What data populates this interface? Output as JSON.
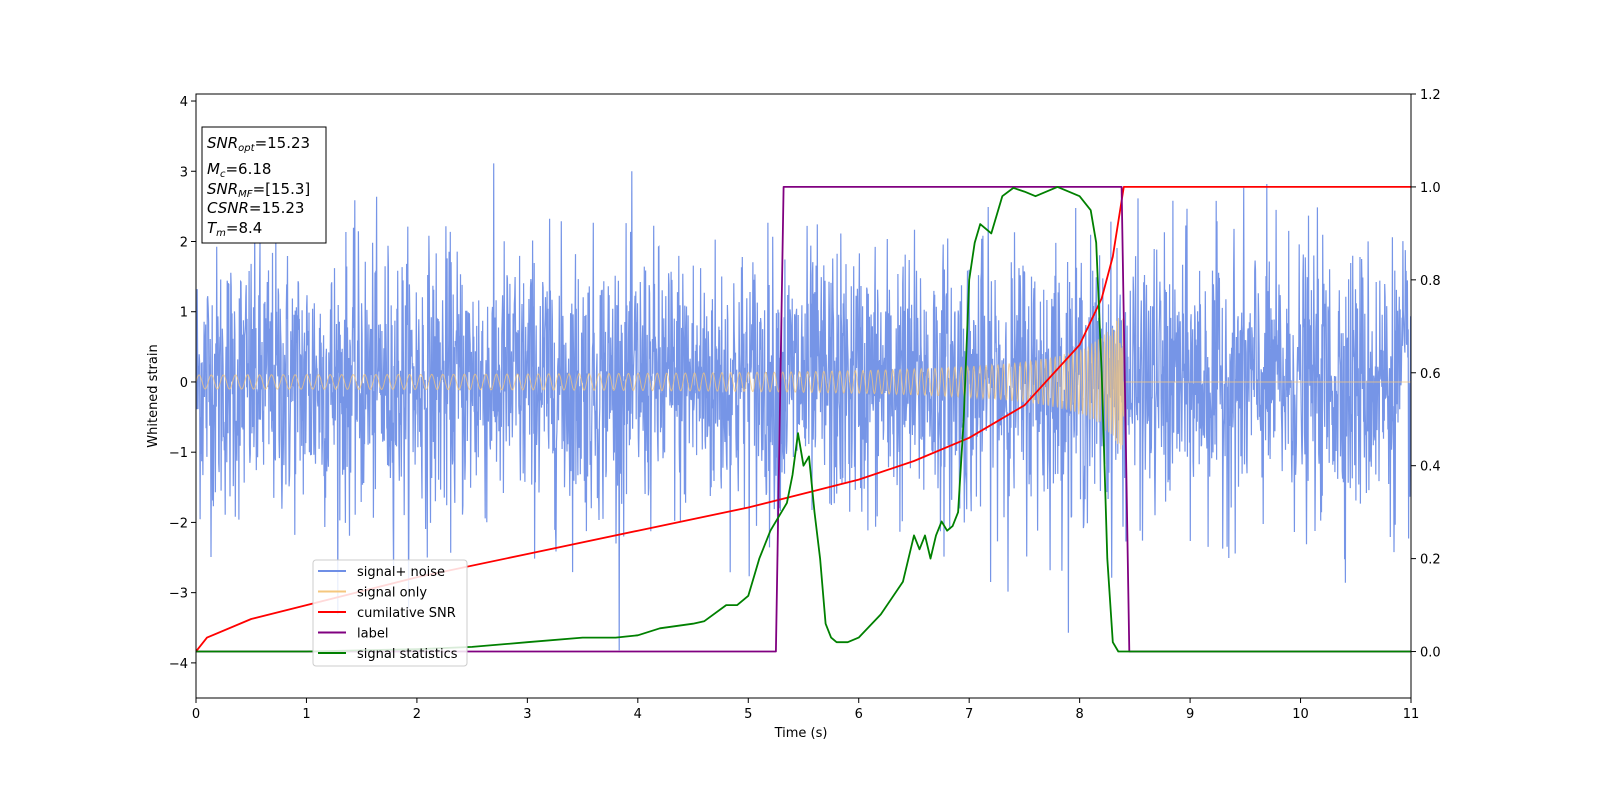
{
  "chart_data": {
    "type": "line",
    "xlabel": "Time (s)",
    "ylabel": "Whitened strain",
    "xlim": [
      0,
      11
    ],
    "ylim": [
      -4.5,
      4.1
    ],
    "y2lim": [
      -0.1,
      1.2
    ],
    "xticks": [
      0,
      1,
      2,
      3,
      4,
      5,
      6,
      7,
      8,
      9,
      10,
      11
    ],
    "yticks": [
      -4,
      -3,
      -2,
      -1,
      0,
      1,
      2,
      3,
      4
    ],
    "y2ticks": [
      0.0,
      0.2,
      0.4,
      0.6,
      0.8,
      1.0,
      1.2
    ],
    "grid": false,
    "legend_position": "lower-left",
    "info_box": {
      "snr_opt": "=15.23",
      "mc": "=6.18",
      "snr_mf": "=[15.3]",
      "csnr": "=15.23",
      "tm": "=8.4"
    },
    "series": [
      {
        "name": "signal+ noise",
        "color": "#6f8fe6",
        "axis": "left",
        "description_values": {
          "mean": 0.0,
          "std": 0.95,
          "range": [
            -4.1,
            3.7
          ]
        }
      },
      {
        "name": "signal only",
        "color": "#f5c77e",
        "axis": "left",
        "chirp": {
          "t_start": 0,
          "t_merger": 8.4,
          "amp_start": 0.08,
          "amp_peak": 1.05
        }
      },
      {
        "name": "cumilative SNR",
        "color": "#ff0000",
        "axis": "right",
        "x": [
          0,
          0.1,
          0.5,
          1,
          2,
          3,
          4,
          5,
          5.5,
          6,
          6.5,
          7,
          7.5,
          8,
          8.2,
          8.3,
          8.4,
          11
        ],
        "y": [
          0.0,
          0.03,
          0.07,
          0.1,
          0.16,
          0.21,
          0.26,
          0.31,
          0.34,
          0.37,
          0.41,
          0.46,
          0.53,
          0.66,
          0.76,
          0.85,
          1.0,
          1.0
        ]
      },
      {
        "name": "label",
        "color": "#800080",
        "axis": "right",
        "x": [
          0,
          5.25,
          5.32,
          8.38,
          8.45,
          11
        ],
        "y": [
          0,
          0,
          1,
          1,
          0,
          0
        ]
      },
      {
        "name": "signal statistics",
        "color": "#008000",
        "axis": "right",
        "x": [
          0,
          1,
          2,
          2.5,
          3,
          3.5,
          3.8,
          4,
          4.2,
          4.5,
          4.6,
          4.8,
          4.9,
          5.0,
          5.05,
          5.1,
          5.2,
          5.3,
          5.35,
          5.4,
          5.45,
          5.5,
          5.55,
          5.6,
          5.65,
          5.7,
          5.75,
          5.8,
          5.9,
          6.0,
          6.2,
          6.4,
          6.5,
          6.55,
          6.6,
          6.65,
          6.7,
          6.75,
          6.8,
          6.85,
          6.9,
          6.95,
          7.0,
          7.05,
          7.1,
          7.2,
          7.3,
          7.4,
          7.5,
          7.6,
          7.7,
          7.8,
          7.9,
          8.0,
          8.1,
          8.15,
          8.2,
          8.25,
          8.3,
          8.35,
          8.4,
          8.45,
          11
        ],
        "y": [
          0.0,
          0.0,
          0.005,
          0.01,
          0.02,
          0.03,
          0.03,
          0.035,
          0.05,
          0.06,
          0.065,
          0.1,
          0.1,
          0.12,
          0.16,
          0.2,
          0.26,
          0.3,
          0.32,
          0.38,
          0.47,
          0.4,
          0.42,
          0.3,
          0.2,
          0.06,
          0.03,
          0.02,
          0.02,
          0.03,
          0.08,
          0.15,
          0.25,
          0.22,
          0.25,
          0.2,
          0.25,
          0.28,
          0.26,
          0.27,
          0.3,
          0.5,
          0.8,
          0.88,
          0.92,
          0.9,
          0.98,
          0.998,
          0.99,
          0.98,
          0.99,
          1.0,
          0.99,
          0.98,
          0.95,
          0.88,
          0.6,
          0.2,
          0.02,
          0.0,
          0.0,
          0.0,
          0.0
        ]
      }
    ]
  }
}
